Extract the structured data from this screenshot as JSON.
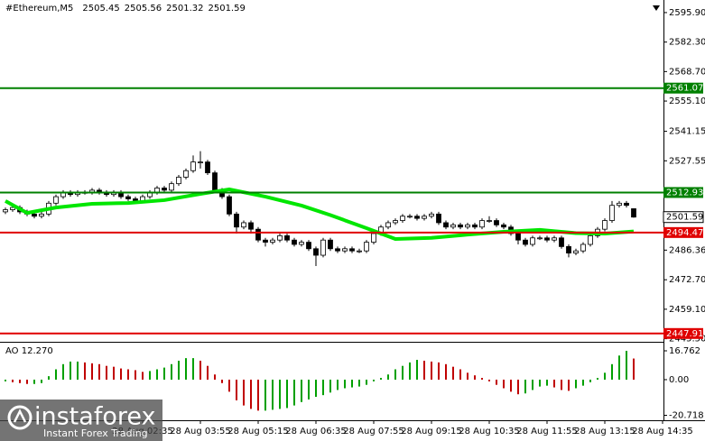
{
  "chart_data": {
    "type": "candlestick",
    "title": "#Ethereum,M5",
    "open": [
      2504,
      2505,
      2506,
      2504,
      2503,
      2502,
      2503,
      2508,
      2511,
      2513,
      2512,
      2513,
      2513,
      2514,
      2513,
      2512,
      2513,
      2511,
      2510,
      2509,
      2511,
      2513,
      2515,
      2514,
      2517,
      2520,
      2523,
      2527,
      2527,
      2522,
      2514,
      2511,
      2503,
      2497,
      2499,
      2496,
      2491,
      2490,
      2491,
      2493,
      2491,
      2489,
      2490,
      2487,
      2484,
      2491,
      2487,
      2486,
      2487,
      2486,
      2486,
      2490,
      2494,
      2497,
      2499,
      2500,
      2502,
      2502,
      2501,
      2502,
      2503,
      2499,
      2497,
      2498,
      2497,
      2498,
      2497,
      2500,
      2500,
      2498,
      2497,
      2494,
      2491,
      2489,
      2492,
      2492,
      2491,
      2492,
      2488,
      2485,
      2486,
      2489,
      2493,
      2496,
      2500,
      2507,
      2508,
      2505.45
    ],
    "high": [
      2506,
      2507,
      2507,
      2505,
      2504,
      2504,
      2509,
      2512,
      2514,
      2514,
      2514,
      2514,
      2515,
      2515,
      2514,
      2514,
      2514,
      2512,
      2511,
      2512,
      2514,
      2516,
      2516,
      2518,
      2521,
      2524,
      2530,
      2532,
      2528,
      2523,
      2515,
      2512,
      2504,
      2500,
      2500,
      2497,
      2492,
      2492,
      2494,
      2494,
      2492,
      2491,
      2491,
      2488,
      2492,
      2492,
      2488,
      2488,
      2488,
      2487,
      2491,
      2495,
      2498,
      2500,
      2501,
      2503,
      2503,
      2503,
      2503,
      2504,
      2504,
      2500,
      2499,
      2499,
      2499,
      2499,
      2501,
      2502,
      2501,
      2499,
      2498,
      2495,
      2492,
      2493,
      2493,
      2493,
      2493,
      2493,
      2489,
      2487,
      2490,
      2494,
      2497,
      2501,
      2509,
      2509,
      2509,
      2505.56
    ],
    "low": [
      2503,
      2504,
      2503,
      2502,
      2501,
      2501,
      2502,
      2507,
      2510,
      2511,
      2511,
      2512,
      2512,
      2512,
      2511,
      2511,
      2510,
      2509,
      2508,
      2508,
      2510,
      2512,
      2513,
      2513,
      2516,
      2519,
      2522,
      2524,
      2521,
      2513,
      2510,
      2502,
      2494,
      2496,
      2494,
      2490,
      2488,
      2489,
      2490,
      2490,
      2488,
      2488,
      2486,
      2479,
      2483,
      2486,
      2485,
      2485,
      2485,
      2485,
      2485,
      2489,
      2493,
      2496,
      2498,
      2499,
      2501,
      2500,
      2500,
      2501,
      2498,
      2496,
      2496,
      2496,
      2496,
      2496,
      2496,
      2499,
      2497,
      2496,
      2493,
      2489,
      2488,
      2488,
      2491,
      2490,
      2490,
      2487,
      2483,
      2484,
      2485,
      2488,
      2492,
      2495,
      2499,
      2506,
      2506,
      2501.32
    ],
    "close": [
      2505,
      2506,
      2504,
      2503,
      2502,
      2503,
      2508,
      2511,
      2513,
      2512,
      2513,
      2513,
      2514,
      2513,
      2512,
      2513,
      2511,
      2510,
      2509,
      2511,
      2513,
      2515,
      2514,
      2517,
      2520,
      2523,
      2527,
      2527,
      2522,
      2514,
      2511,
      2503,
      2497,
      2499,
      2496,
      2491,
      2490,
      2491,
      2493,
      2491,
      2489,
      2490,
      2487,
      2484,
      2491,
      2487,
      2486,
      2487,
      2486,
      2486,
      2490,
      2494,
      2497,
      2499,
      2500,
      2502,
      2502,
      2501,
      2502,
      2503,
      2499,
      2497,
      2498,
      2497,
      2498,
      2497,
      2500,
      2500,
      2498,
      2497,
      2494,
      2491,
      2489,
      2492,
      2492,
      2491,
      2492,
      2488,
      2485,
      2486,
      2489,
      2493,
      2496,
      2500,
      2507,
      2508,
      2507,
      2501.59
    ],
    "up_color": "#ffffff",
    "down_color": "#000000",
    "xlim": [
      -0.75,
      91.125
    ],
    "xticks": [
      {
        "value": 19,
        "label": "28 Aug 02:35"
      },
      {
        "value": 27,
        "label": "28 Aug 03:55"
      },
      {
        "value": 35,
        "label": "28 Aug 05:15"
      },
      {
        "value": 43,
        "label": "28 Aug 06:35"
      },
      {
        "value": 51,
        "label": "28 Aug 07:55"
      },
      {
        "value": 59,
        "label": "28 Aug 09:15"
      },
      {
        "value": 67,
        "label": "28 Aug 10:35"
      },
      {
        "value": 75,
        "label": "28 Aug 11:55"
      },
      {
        "value": 83,
        "label": "28 Aug 13:15"
      },
      {
        "value": 91,
        "label": "28 Aug 14:35"
      }
    ],
    "ylim": [
      2444.5,
      2601.7
    ],
    "yticks": [
      {
        "value": 2595.9,
        "label": "2595.90"
      },
      {
        "value": 2582.3,
        "label": "2582.30"
      },
      {
        "value": 2568.7,
        "label": "2568.70"
      },
      {
        "value": 2555.1,
        "label": "2555.10"
      },
      2541.15,
      2527.55,
      2486.36,
      {
        "value": 2472.7,
        "label": "2472.70"
      },
      {
        "value": 2459.1,
        "label": "2459.10"
      },
      {
        "value": 2445.5,
        "label": "2445.50"
      }
    ],
    "moving_average": {
      "color": "#00e600",
      "x": [
        0,
        3,
        7,
        12,
        17,
        22,
        27,
        31,
        36,
        41,
        45,
        50,
        54,
        59,
        64,
        69,
        74,
        79,
        83,
        87
      ],
      "values": [
        2509,
        2503.5,
        2506,
        2507.7,
        2508.1,
        2509.4,
        2512.3,
        2514.4,
        2511,
        2506.9,
        2502.5,
        2496.5,
        2491.5,
        2492,
        2493.5,
        2494.8,
        2495.7,
        2494.2,
        2494,
        2495
      ]
    },
    "levels": [
      {
        "value": 2561.07,
        "color": "#008000"
      },
      {
        "value": 2512.93,
        "color": "#008000"
      },
      {
        "value": 2494.47,
        "color": "#e00000"
      },
      {
        "value": 2447.91,
        "color": "#e00000"
      }
    ],
    "indicator": {
      "type": "bar",
      "title": "AO 12.270",
      "up_color": "#00a000",
      "down_color": "#c00000",
      "values": [
        -1,
        -1.5,
        -2,
        -2.5,
        -2.5,
        -2,
        2,
        6,
        9,
        10.5,
        10.5,
        10,
        9.5,
        9,
        8,
        7.5,
        6.5,
        6,
        5.5,
        4.5,
        5,
        6,
        7,
        9,
        11,
        12.5,
        12.5,
        11,
        8,
        3,
        -2,
        -7,
        -12,
        -15,
        -17,
        -18,
        -18,
        -17.5,
        -17,
        -16.5,
        -15,
        -13,
        -11.5,
        -10,
        -9,
        -7.5,
        -6,
        -5,
        -4.5,
        -4,
        -3,
        -1,
        1,
        3,
        6,
        8,
        10,
        11.5,
        11,
        10.5,
        10,
        9,
        7.5,
        6,
        4,
        2.5,
        1,
        -1,
        -3,
        -5,
        -7,
        -8.5,
        -8,
        -6,
        -4,
        -3.5,
        -4.5,
        -6,
        -6.5,
        -5,
        -3.5,
        -1.5,
        1,
        4,
        9,
        14,
        16.762,
        12.27
      ],
      "ylim": [
        -23.6,
        20.95
      ],
      "yticks": [
        16.762,
        {
          "value": 0,
          "label": "0.00"
        },
        -20.718
      ]
    }
  },
  "watermark": {
    "brand": "instaforex",
    "tagline": "Instant Forex Trading"
  }
}
